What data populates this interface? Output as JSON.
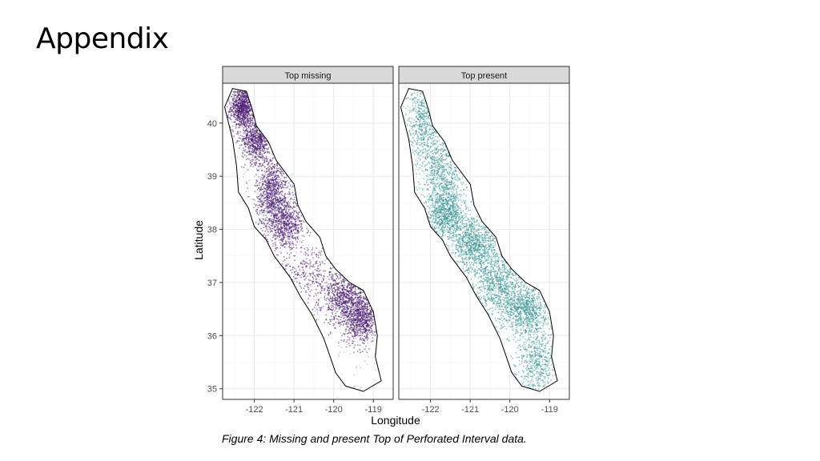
{
  "slide": {
    "title": "Appendix",
    "caption": "Figure 4: Missing and present Top of Perforated Interval data."
  },
  "chart_data": {
    "type": "scatter",
    "xlabel": "Longitude",
    "ylabel": "Latitude",
    "xlim": [
      -122.8,
      -118.5
    ],
    "ylim": [
      34.8,
      40.75
    ],
    "x_ticks": [
      -122,
      -121,
      -120,
      -119
    ],
    "y_ticks": [
      35,
      36,
      37,
      38,
      39,
      40
    ],
    "grid": true,
    "legend": "none",
    "panels": [
      {
        "name": "Top missing",
        "color": "#4b1c73"
      },
      {
        "name": "Top present",
        "color": "#3a9595"
      }
    ],
    "outline_color": "#000000",
    "region_outline": [
      [
        -122.55,
        40.65
      ],
      [
        -122.2,
        40.6
      ],
      [
        -122.05,
        40.25
      ],
      [
        -121.95,
        39.95
      ],
      [
        -121.65,
        39.65
      ],
      [
        -121.45,
        39.3
      ],
      [
        -121.15,
        39.0
      ],
      [
        -121.0,
        38.85
      ],
      [
        -120.9,
        38.45
      ],
      [
        -120.7,
        38.15
      ],
      [
        -120.35,
        37.85
      ],
      [
        -120.2,
        37.5
      ],
      [
        -119.95,
        37.25
      ],
      [
        -119.6,
        37.0
      ],
      [
        -119.25,
        36.85
      ],
      [
        -119.0,
        36.45
      ],
      [
        -118.9,
        36.0
      ],
      [
        -118.95,
        35.6
      ],
      [
        -118.8,
        35.15
      ],
      [
        -119.25,
        34.95
      ],
      [
        -119.7,
        35.05
      ],
      [
        -119.95,
        35.3
      ],
      [
        -120.25,
        35.95
      ],
      [
        -120.55,
        36.4
      ],
      [
        -120.85,
        36.75
      ],
      [
        -121.1,
        37.1
      ],
      [
        -121.5,
        37.5
      ],
      [
        -121.7,
        37.8
      ],
      [
        -122.0,
        38.05
      ],
      [
        -122.15,
        38.4
      ],
      [
        -122.4,
        38.7
      ],
      [
        -122.45,
        39.2
      ],
      [
        -122.55,
        39.7
      ],
      [
        -122.75,
        40.3
      ],
      [
        -122.55,
        40.65
      ]
    ],
    "density_clusters": {
      "Top missing": [
        {
          "center": [
            -122.3,
            40.3
          ],
          "spread": [
            0.15,
            0.2
          ],
          "weight": 1.0
        },
        {
          "center": [
            -121.95,
            39.7
          ],
          "spread": [
            0.18,
            0.22
          ],
          "weight": 0.8
        },
        {
          "center": [
            -121.55,
            38.7
          ],
          "spread": [
            0.2,
            0.35
          ],
          "weight": 1.0
        },
        {
          "center": [
            -121.2,
            38.1
          ],
          "spread": [
            0.25,
            0.22
          ],
          "weight": 0.7
        },
        {
          "center": [
            -119.7,
            36.7
          ],
          "spread": [
            0.3,
            0.25
          ],
          "weight": 1.0
        },
        {
          "center": [
            -119.3,
            36.3
          ],
          "spread": [
            0.22,
            0.22
          ],
          "weight": 0.8
        },
        {
          "center": [
            -120.6,
            37.2
          ],
          "spread": [
            0.35,
            0.3
          ],
          "weight": 0.3
        }
      ],
      "Top present": [
        {
          "center": [
            -122.2,
            40.0
          ],
          "spread": [
            0.2,
            0.4
          ],
          "weight": 0.6
        },
        {
          "center": [
            -121.7,
            39.1
          ],
          "spread": [
            0.25,
            0.35
          ],
          "weight": 0.7
        },
        {
          "center": [
            -121.6,
            38.3
          ],
          "spread": [
            0.25,
            0.25
          ],
          "weight": 1.0
        },
        {
          "center": [
            -120.9,
            37.7
          ],
          "spread": [
            0.3,
            0.25
          ],
          "weight": 1.0
        },
        {
          "center": [
            -120.3,
            37.0
          ],
          "spread": [
            0.3,
            0.3
          ],
          "weight": 0.9
        },
        {
          "center": [
            -119.6,
            36.5
          ],
          "spread": [
            0.3,
            0.25
          ],
          "weight": 1.0
        },
        {
          "center": [
            -119.3,
            35.5
          ],
          "spread": [
            0.25,
            0.35
          ],
          "weight": 0.6
        }
      ]
    }
  }
}
